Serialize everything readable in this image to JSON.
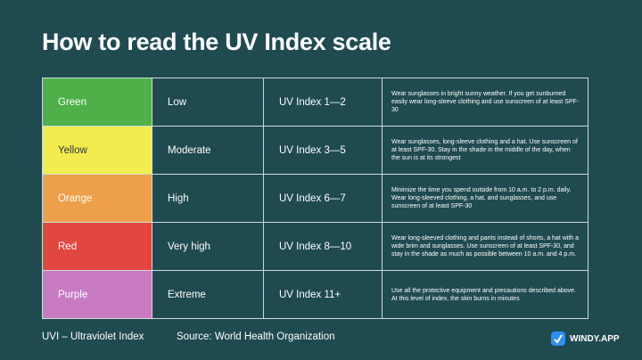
{
  "header": {
    "title": "How to read the UV Index scale"
  },
  "table": {
    "rows": [
      [
        "Green",
        "Low",
        "UV Index 1—2",
        "Wear sunglasses in bright sunny weather. If you get sunburned easily wear long-sleeve clothing and use sunscreen of at least SPF-30"
      ],
      [
        "Yellow",
        "Moderate",
        "UV Index 3—5",
        "Wear sunglasses, long-sleeve clothing and a hat. Use sunscreen of at least SPF-30. Stay in the shade in the middle of the day, when the sun is at its strongest"
      ],
      [
        "Orange",
        "High",
        "UV Index 6—7",
        "Minimize the time you spend outside from 10 a.m. to 2 p.m. daily. Wear long-sleeved clothing, a hat, and sunglasses, and use sunscreen of at least SPF-30"
      ],
      [
        "Red",
        "Very high",
        "UV Index 8—10",
        "Wear long-sleeved clothing and pants instead of shorts, a hat with a wide brim and sunglasses. Use sunscreen of at least SPF-30, and stay in the shade as much as possible between 10 a.m. and 4 p.m."
      ],
      [
        "Purple",
        "Extreme",
        "UV Index 11+",
        "Use all the protective equipment and precautions described above. At this level of index, the skin burns in minutes"
      ]
    ]
  },
  "footer": {
    "note": "UVI – Ultraviolet Index",
    "source": "Source: World Health Organization",
    "brand": "WINDY.APP"
  }
}
